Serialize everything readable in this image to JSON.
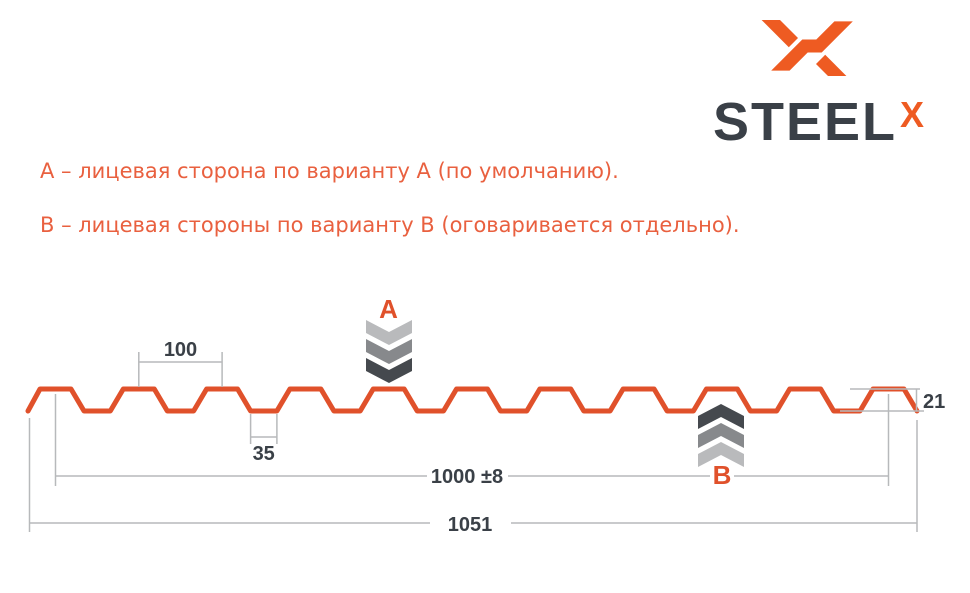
{
  "brand": {
    "name": "STEEL",
    "suffix": "X"
  },
  "notes": {
    "line_a": "А – лицевая сторона по варианту А (по умолчанию).",
    "line_b": "В – лицевая стороны по варианту В (оговаривается отдельно)."
  },
  "diagram": {
    "marker_a": "А",
    "marker_b": "В",
    "dims": {
      "pitch": "100",
      "valley": "35",
      "width": "1000 ±8",
      "total": "1051",
      "height": "21"
    }
  },
  "colors": {
    "brand_orange": "#EE5B22",
    "profile_orange": "#E0512B",
    "text_orange": "#E9603F",
    "ink": "#3A4047",
    "dim_gray": "#B7B9BB",
    "chevron_dark": "#45494E",
    "chevron_mid": "#87898C",
    "chevron_light": "#B9BABC"
  }
}
